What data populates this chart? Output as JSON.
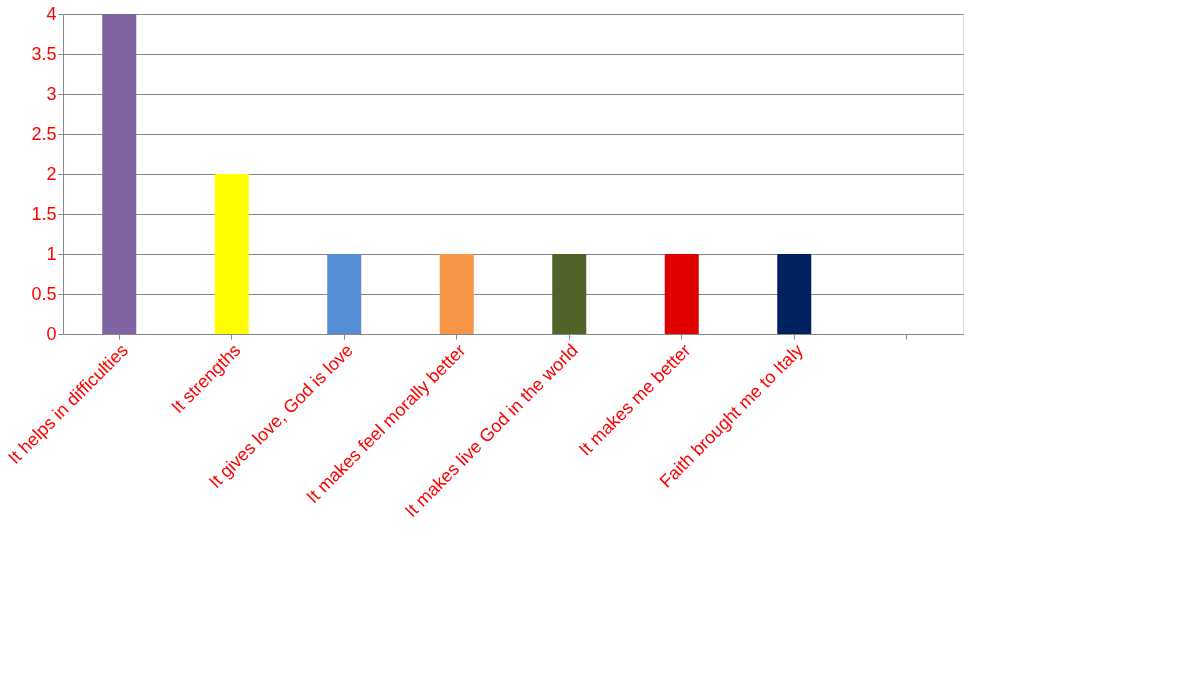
{
  "chart_data": {
    "type": "bar",
    "categories": [
      "It helps in difficulties",
      "It strengths",
      "It gives love, God is love",
      "It makes feel morally better",
      "It makes live God in the world",
      "It makes me better",
      "Faith brought me to Italy",
      null
    ],
    "values": [
      4,
      2,
      1,
      1,
      1,
      1,
      1,
      null
    ],
    "colors": [
      "#8064a2",
      "#ffff00",
      "#558ed5",
      "#f79646",
      "#4f6228",
      "#e00000",
      "#002060",
      "#808080"
    ],
    "ylim": [
      0,
      4
    ],
    "yticks": [
      0,
      0.5,
      1,
      1.5,
      2,
      2.5,
      3,
      3.5,
      4
    ],
    "grid": "y"
  }
}
